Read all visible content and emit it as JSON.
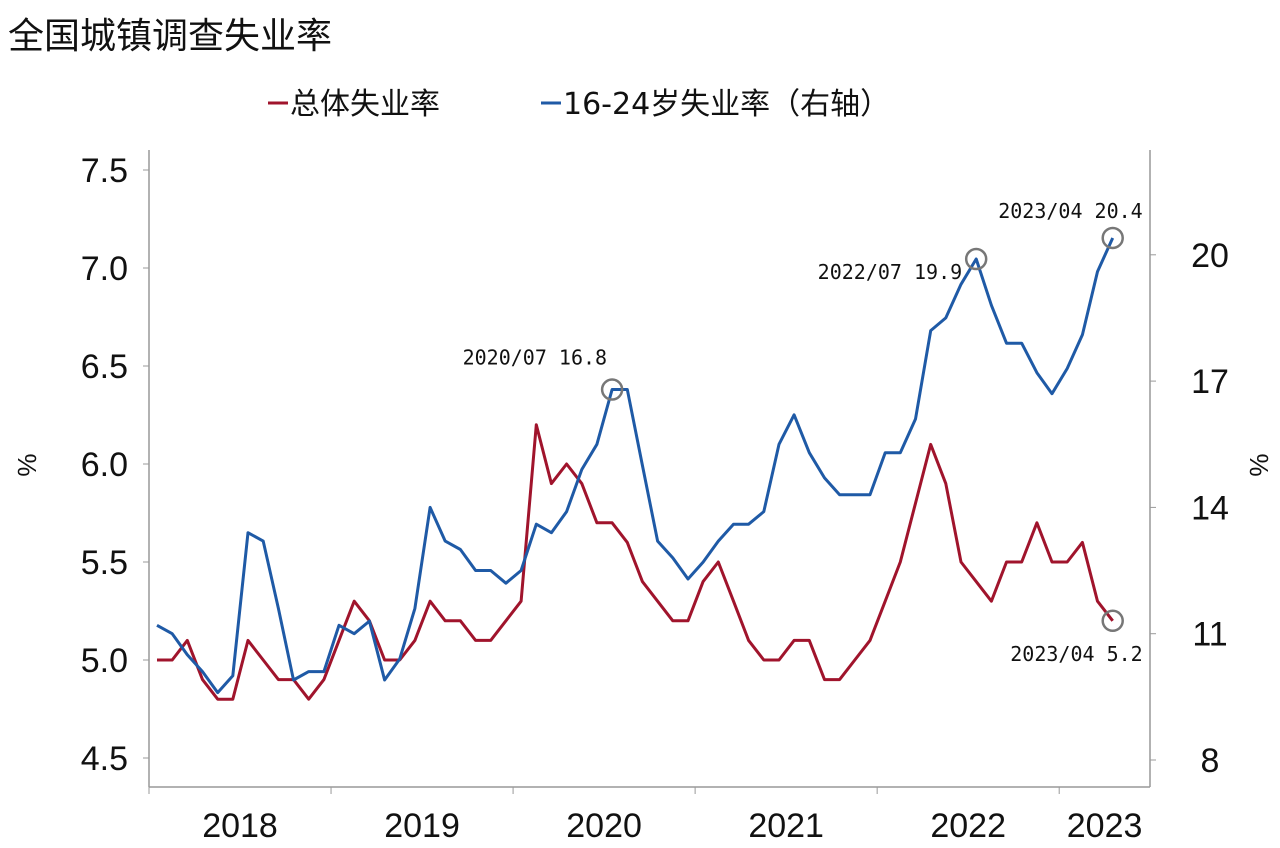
{
  "chart_data": {
    "type": "line",
    "title": "全国城镇调查失业率",
    "ylabel": "%",
    "ylabel_right": "%",
    "ylim": [
      4.5,
      7.5
    ],
    "ylim_right": [
      8,
      22
    ],
    "yticks": [
      "4.5",
      "5.0",
      "5.5",
      "6.0",
      "6.5",
      "7.0",
      "7.5"
    ],
    "yticks_right": [
      "8",
      "11",
      "14",
      "17",
      "20"
    ],
    "xticks": [
      "2018",
      "2019",
      "2020",
      "2021",
      "2022",
      "2023"
    ],
    "x_start": "2018/01",
    "x_end": "2023/04",
    "grid": false,
    "legend": "top",
    "series": [
      {
        "name": "总体失业率",
        "axis": "left",
        "color": "#a0142c",
        "values": [
          5.0,
          5.0,
          5.1,
          4.9,
          4.8,
          4.8,
          5.1,
          5.0,
          4.9,
          4.9,
          4.8,
          4.9,
          5.1,
          5.3,
          5.2,
          5.0,
          5.0,
          5.1,
          5.3,
          5.2,
          5.2,
          5.1,
          5.1,
          5.2,
          5.3,
          6.2,
          5.9,
          6.0,
          5.9,
          5.7,
          5.7,
          5.6,
          5.4,
          5.3,
          5.2,
          5.2,
          5.4,
          5.5,
          5.3,
          5.1,
          5.0,
          5.0,
          5.1,
          5.1,
          4.9,
          4.9,
          5.0,
          5.1,
          5.3,
          5.5,
          5.8,
          6.1,
          5.9,
          5.5,
          5.4,
          5.3,
          5.5,
          5.5,
          5.7,
          5.5,
          5.5,
          5.6,
          5.3,
          5.2
        ]
      },
      {
        "name": "16-24岁失业率（右轴）",
        "axis": "right",
        "color": "#1f5aa6",
        "values": [
          11.2,
          11.0,
          10.5,
          10.1,
          9.6,
          10.0,
          13.4,
          13.2,
          11.6,
          9.9,
          10.1,
          10.1,
          11.2,
          11.0,
          11.3,
          9.9,
          10.4,
          11.6,
          14.0,
          13.2,
          13.0,
          12.5,
          12.5,
          12.2,
          12.5,
          13.6,
          13.4,
          13.9,
          14.9,
          15.5,
          16.8,
          16.8,
          15.0,
          13.2,
          12.8,
          12.3,
          12.7,
          13.2,
          13.6,
          13.6,
          13.9,
          15.5,
          16.2,
          15.3,
          14.7,
          14.3,
          14.3,
          14.3,
          15.3,
          15.3,
          16.1,
          18.2,
          18.5,
          19.3,
          19.9,
          18.8,
          17.9,
          17.9,
          17.2,
          16.7,
          17.3,
          18.1,
          19.6,
          20.4
        ]
      }
    ],
    "annotations": [
      {
        "text": "2020/07 16.8",
        "series": 1,
        "index": 30
      },
      {
        "text": "2022/07 19.9",
        "series": 1,
        "index": 54
      },
      {
        "text": "2023/04 20.4",
        "series": 1,
        "index": 63
      },
      {
        "text": "2023/04 5.2",
        "series": 0,
        "index": 63
      }
    ]
  }
}
